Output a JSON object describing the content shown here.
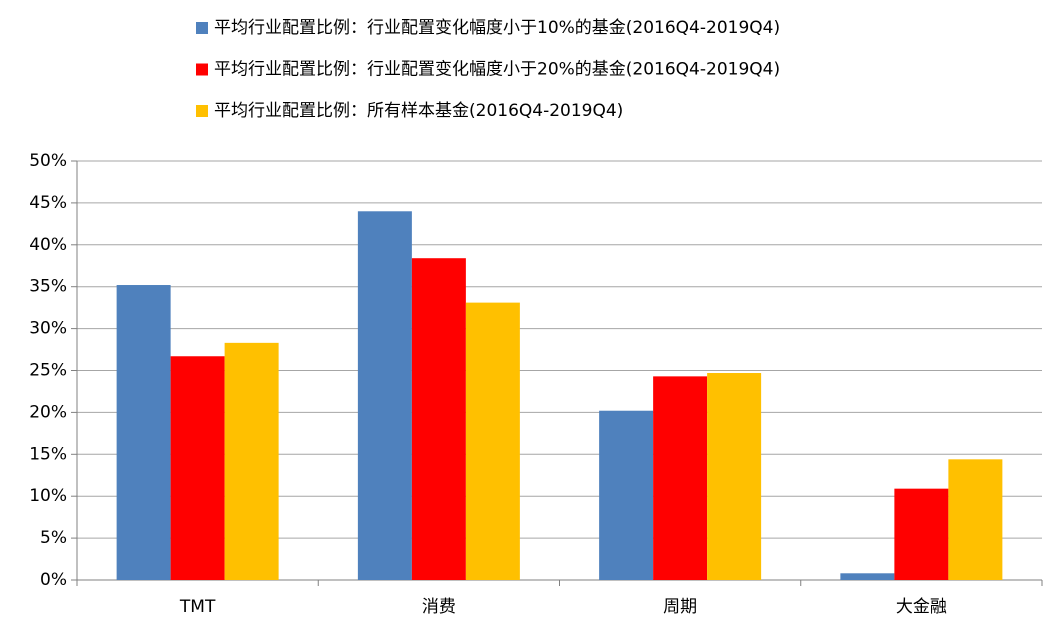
{
  "chart_data": {
    "type": "bar",
    "categories": [
      "TMT",
      "消费",
      "周期",
      "大金融"
    ],
    "series": [
      {
        "name": "平均行业配置比例：行业配置变化幅度小于10%的基金(2016Q4-2019Q4)",
        "color": "#4f81bd",
        "values": [
          35.2,
          44.0,
          20.2,
          0.8
        ]
      },
      {
        "name": "平均行业配置比例：行业配置变化幅度小于20%的基金(2016Q4-2019Q4)",
        "color": "#ff0000",
        "values": [
          26.7,
          38.4,
          24.3,
          10.9
        ]
      },
      {
        "name": "平均行业配置比例：所有样本基金(2016Q4-2019Q4)",
        "color": "#ffc000",
        "values": [
          28.3,
          33.1,
          24.7,
          14.4
        ]
      }
    ],
    "ylim": [
      0,
      50
    ],
    "yticks": [
      {
        "value": 0,
        "label": "0%"
      },
      {
        "value": 5,
        "label": "5%"
      },
      {
        "value": 10,
        "label": "10%"
      },
      {
        "value": 15,
        "label": "15%"
      },
      {
        "value": 20,
        "label": "20%"
      },
      {
        "value": 25,
        "label": "25%"
      },
      {
        "value": 30,
        "label": "30%"
      },
      {
        "value": 35,
        "label": "35%"
      },
      {
        "value": 40,
        "label": "40%"
      },
      {
        "value": 45,
        "label": "45%"
      },
      {
        "value": 50,
        "label": "50%"
      }
    ],
    "grid": true,
    "legend": "top"
  }
}
